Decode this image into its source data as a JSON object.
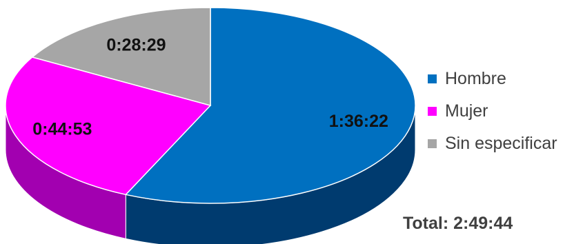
{
  "chart_data": {
    "type": "pie",
    "style": "3d",
    "unit": "time (h:mm:ss)",
    "categories": [
      "Hombre",
      "Mujer",
      "Sin especificar"
    ],
    "values": [
      "1:36:22",
      "0:44:53",
      "0:28:29"
    ],
    "values_seconds": [
      5782,
      2693,
      1709
    ],
    "colors": [
      "#0070c0",
      "#ff00ff",
      "#a6a6a6"
    ],
    "side_colors": [
      "#003b6f",
      "#a200b0",
      "#6e6e6e"
    ],
    "data_labels": [
      "1:36:22",
      "0:44:53",
      "0:28:29"
    ],
    "legend": {
      "position": "right",
      "entries": [
        "Hombre",
        "Mujer",
        "Sin especificar"
      ]
    },
    "title": ""
  },
  "total": {
    "text": "Total: 2:49:44"
  }
}
